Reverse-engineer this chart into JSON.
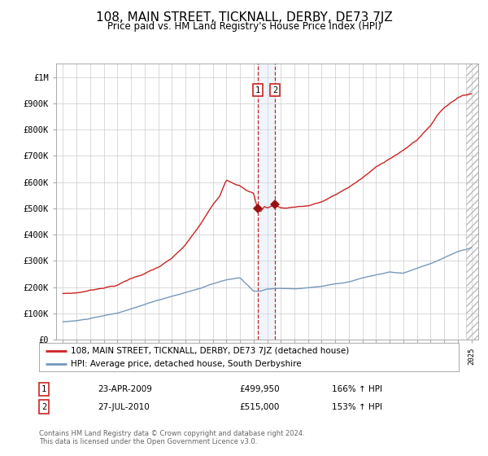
{
  "title": "108, MAIN STREET, TICKNALL, DERBY, DE73 7JZ",
  "subtitle": "Price paid vs. HM Land Registry's House Price Index (HPI)",
  "title_fontsize": 11,
  "subtitle_fontsize": 9,
  "ylim": [
    0,
    1050000
  ],
  "yticks": [
    0,
    100000,
    200000,
    300000,
    400000,
    500000,
    600000,
    700000,
    800000,
    900000,
    1000000
  ],
  "ytick_labels": [
    "£0",
    "£100K",
    "£200K",
    "£300K",
    "£400K",
    "£500K",
    "£600K",
    "£700K",
    "£800K",
    "£900K",
    "£1M"
  ],
  "hpi_color": "#7799bb",
  "price_color": "#cc2222",
  "marker_color": "#991111",
  "vline_color": "#cc2222",
  "vband_color": "#ddeeff",
  "grid_color": "#cccccc",
  "bg_color": "#ffffff",
  "legend_line1": "108, MAIN STREET, TICKNALL, DERBY, DE73 7JZ (detached house)",
  "legend_line2": "HPI: Average price, detached house, South Derbyshire",
  "transaction1_label": "1",
  "transaction1_date": "23-APR-2009",
  "transaction1_price": "£499,950",
  "transaction1_hpi": "166% ↑ HPI",
  "transaction1_year": 2009.3,
  "transaction1_value": 499950,
  "transaction2_label": "2",
  "transaction2_date": "27-JUL-2010",
  "transaction2_price": "£515,000",
  "transaction2_hpi": "153% ↑ HPI",
  "transaction2_year": 2010.56,
  "transaction2_value": 515000,
  "footer": "Contains HM Land Registry data © Crown copyright and database right 2024.\nThis data is licensed under the Open Government Licence v3.0.",
  "hatch_color": "#bbbbbb",
  "years_start": 1995.0,
  "years_end": 2025.0,
  "xlim_left": 1994.5,
  "xlim_right": 2025.5
}
